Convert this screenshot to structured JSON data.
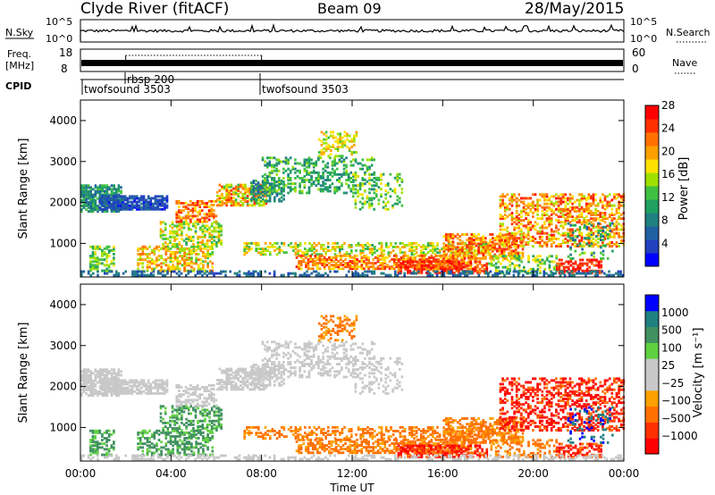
{
  "header": {
    "station": "Clyde River (fitACF)",
    "beam": "Beam 09",
    "date": "28/May/2015"
  },
  "summary": {
    "nsky_label": "N.Sky",
    "nsky_top": "10^5",
    "nsky_bottom": "10^0",
    "nsearch_label": "N.Search",
    "freq_label_1": "Freq.",
    "freq_label_2": "[MHz]",
    "freq_top": "18",
    "freq_bottom": "8",
    "nave_label": "Nave",
    "nave_top": "60",
    "nave_bottom": "0",
    "cpid_label": "CPID",
    "cpid_segments": [
      {
        "label": "twofsound 3503",
        "start_hour": 0
      },
      {
        "label": "rbsp 200",
        "start_hour": 2
      },
      {
        "label": "twofsound 3503",
        "start_hour": 8
      }
    ]
  },
  "colors": {
    "power": [
      "#0000ff",
      "#2040c0",
      "#2060a0",
      "#208080",
      "#20a060",
      "#40c040",
      "#a0e000",
      "#ffe000",
      "#ffa000",
      "#ff7000",
      "#ff3000",
      "#ff0000"
    ],
    "velocity": [
      "#ff0000",
      "#ff3000",
      "#ff7000",
      "#ffa000",
      "#c8c8c8",
      "#c8c8c8",
      "#60d040",
      "#409060",
      "#208080",
      "#0000ff"
    ]
  },
  "chart_data": [
    {
      "type": "heatmap",
      "name": "power",
      "ylabel": "Slant Range [km]",
      "ylim": [
        180,
        4500
      ],
      "xlim": [
        0,
        24
      ],
      "yticks": [
        "1000",
        "2000",
        "3000",
        "4000"
      ],
      "colorbar_label": "Power [dB]",
      "colorbar_ticks": [
        "4",
        "8",
        "12",
        "16",
        "20",
        "24",
        "28"
      ],
      "colorbar_range": [
        0,
        30
      ]
    },
    {
      "type": "heatmap",
      "name": "velocity",
      "ylabel": "Slant Range [km]",
      "ylim": [
        180,
        4500
      ],
      "xlim": [
        0,
        24
      ],
      "yticks": [
        "1000",
        "2000",
        "3000",
        "4000"
      ],
      "xticks": [
        "00:00",
        "04:00",
        "08:00",
        "12:00",
        "16:00",
        "20:00",
        "00:00"
      ],
      "xlabel": "Time UT",
      "colorbar_label": "Velocity [m s⁻¹]",
      "colorbar_ticks": [
        "1000",
        "500",
        "100",
        "25",
        "−25",
        "−100",
        "−500",
        "−1000"
      ]
    }
  ]
}
